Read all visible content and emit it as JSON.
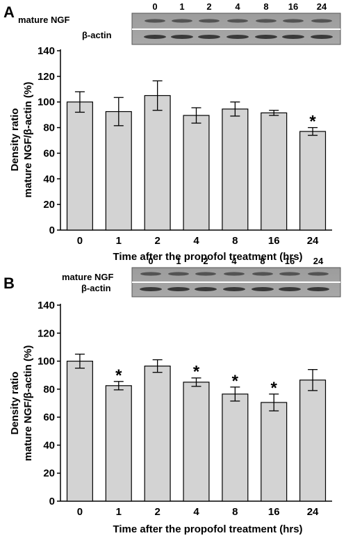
{
  "panels": [
    {
      "letter": "A",
      "blot": {
        "lanes": [
          "0",
          "1",
          "2",
          "4",
          "8",
          "16",
          "24"
        ],
        "row1_label": "mature NGF",
        "row2_label": "β-actin"
      },
      "chart_data": {
        "type": "bar",
        "categories": [
          "0",
          "1",
          "2",
          "4",
          "8",
          "16",
          "24"
        ],
        "values": [
          100,
          92.5,
          105,
          89.5,
          94.5,
          91.5,
          77
        ],
        "errors": [
          8,
          11,
          11.5,
          6,
          5.5,
          2,
          3
        ],
        "significant": [
          false,
          false,
          false,
          false,
          false,
          false,
          true
        ],
        "xlabel": "Time after the propofol treatment (hrs)",
        "ylabel_line1": "Density ratio",
        "ylabel_line2": "mature NGF/β-actin (%)",
        "ylim": [
          0,
          140
        ],
        "yticks": [
          "0",
          "20",
          "40",
          "60",
          "80",
          "100",
          "120",
          "140"
        ],
        "significance_marker": "*",
        "bar_color": "#d3d3d3",
        "grid": false,
        "legend": "none"
      }
    },
    {
      "letter": "B",
      "blot": {
        "lanes": [
          "0",
          "1",
          "2",
          "4",
          "8",
          "16",
          "24"
        ],
        "row1_label": "mature NGF",
        "row2_label": "β-actin"
      },
      "chart_data": {
        "type": "bar",
        "categories": [
          "0",
          "1",
          "2",
          "4",
          "8",
          "16",
          "24"
        ],
        "values": [
          100,
          82.5,
          96.5,
          85,
          76.5,
          70.5,
          86.5
        ],
        "errors": [
          5,
          3,
          4.5,
          3,
          5,
          6,
          7.5
        ],
        "significant": [
          false,
          true,
          false,
          true,
          true,
          true,
          false
        ],
        "xlabel": "Time after the propofol treatment (hrs)",
        "ylabel_line1": "Density ratio",
        "ylabel_line2": "mature NGF/β-actin (%)",
        "ylim": [
          0,
          140
        ],
        "yticks": [
          "0",
          "20",
          "40",
          "60",
          "80",
          "100",
          "120",
          "140"
        ],
        "significance_marker": "*",
        "bar_color": "#d3d3d3",
        "grid": false,
        "legend": "none"
      }
    }
  ]
}
